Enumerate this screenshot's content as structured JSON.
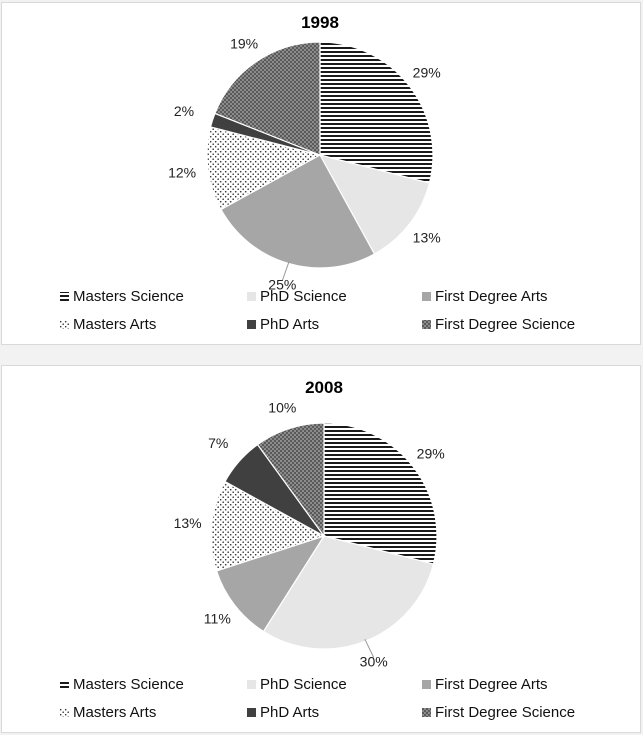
{
  "chart_data": [
    {
      "type": "pie",
      "title": "1998",
      "series": [
        {
          "name": "Masters Science",
          "value": 29,
          "label": "29%"
        },
        {
          "name": "PhD Science",
          "value": 13,
          "label": "13%"
        },
        {
          "name": "First Degree Arts",
          "value": 25,
          "label": "25%"
        },
        {
          "name": "Masters Arts",
          "value": 12,
          "label": "12%"
        },
        {
          "name": "PhD Arts",
          "value": 2,
          "label": "2%"
        },
        {
          "name": "First Degree Science",
          "value": 19,
          "label": "19%"
        }
      ],
      "legend_position": "bottom"
    },
    {
      "type": "pie",
      "title": "2008",
      "series": [
        {
          "name": "Masters Science",
          "value": 29,
          "label": "29%"
        },
        {
          "name": "PhD Science",
          "value": 30,
          "label": "30%"
        },
        {
          "name": "First Degree Arts",
          "value": 11,
          "label": "11%"
        },
        {
          "name": "Masters Arts",
          "value": 13,
          "label": "13%"
        },
        {
          "name": "PhD Arts",
          "value": 7,
          "label": "7%"
        },
        {
          "name": "First Degree Science",
          "value": 10,
          "label": "10%"
        }
      ],
      "legend_position": "bottom"
    }
  ],
  "colors": {
    "masters_science": "#333333",
    "phd_science": "#e6e6e6",
    "first_degree_arts": "#a6a6a6",
    "masters_arts": "#555555",
    "phd_arts": "#404040",
    "first_degree_science": "#707070"
  }
}
